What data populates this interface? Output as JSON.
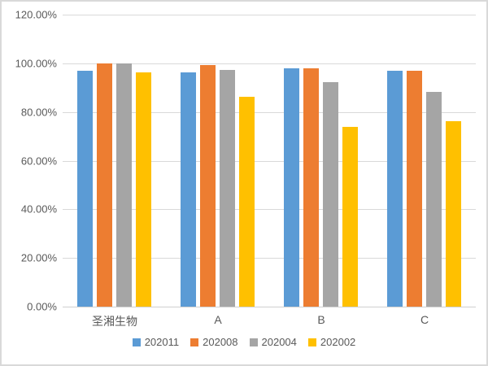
{
  "chart_data": {
    "type": "bar",
    "title": "",
    "xlabel": "",
    "ylabel": "",
    "categories": [
      "圣湘生物",
      "A",
      "B",
      "C"
    ],
    "series": [
      {
        "name": "202011",
        "color": "#5B9BD5",
        "values": [
          97.1,
          96.2,
          97.8,
          96.8
        ]
      },
      {
        "name": "202008",
        "color": "#ED7D31",
        "values": [
          100.0,
          99.3,
          97.8,
          96.8
        ]
      },
      {
        "name": "202004",
        "color": "#A5A5A5",
        "values": [
          100.0,
          97.4,
          92.3,
          88.1
        ]
      },
      {
        "name": "202002",
        "color": "#FFC000",
        "values": [
          96.4,
          86.4,
          73.9,
          76.2
        ]
      }
    ],
    "ylim": [
      0,
      120
    ],
    "y_ticks": [
      {
        "value": 0,
        "label": "0.00%"
      },
      {
        "value": 20,
        "label": "20.00%"
      },
      {
        "value": 40,
        "label": "40.00%"
      },
      {
        "value": 60,
        "label": "60.00%"
      },
      {
        "value": 80,
        "label": "80.00%"
      },
      {
        "value": 100,
        "label": "100.00%"
      },
      {
        "value": 120,
        "label": "120.00%"
      }
    ],
    "grid": true,
    "legend_position": "bottom"
  },
  "colors": {
    "background": "#FFFFFF",
    "border": "#D9D9D9",
    "gridline": "#D9D9D9",
    "axis_line": "#D0D0D0",
    "text": "#595959"
  }
}
